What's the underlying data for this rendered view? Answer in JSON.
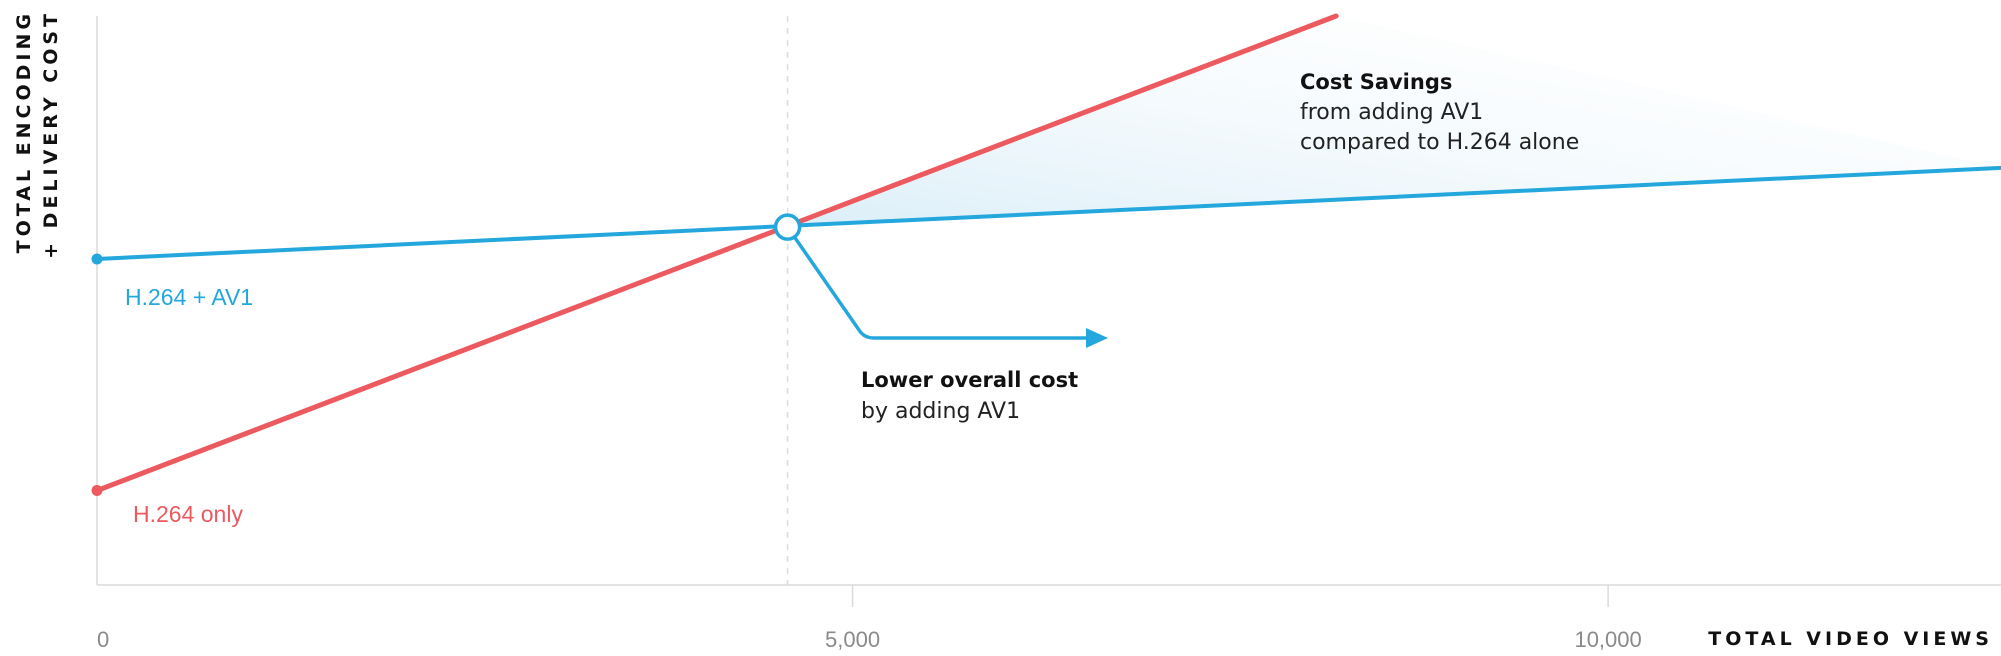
{
  "chart_data": {
    "type": "line",
    "xlabel": "TOTAL VIDEO VIEWS",
    "ylabel": [
      "TOTAL ENCODING",
      "+ DELIVERY COST"
    ],
    "xlim": [
      0,
      12600
    ],
    "ylim": [
      0,
      100
    ],
    "x_ticks": [
      0,
      5000,
      10000
    ],
    "x_tick_labels": [
      "0",
      "5,000",
      "10,000"
    ],
    "y_ticks_shown": false,
    "grid": false,
    "series": [
      {
        "name": "H.264 + AV1",
        "color": "#23a7dc",
        "x": [
          0,
          12600
        ],
        "y": [
          57.3,
          73.3
        ]
      },
      {
        "name": "H.264 only",
        "color": "#ec5a60",
        "x": [
          0,
          8200
        ],
        "y": [
          16.6,
          100
        ]
      }
    ],
    "breakeven": {
      "x": 4570,
      "y": 62.9
    },
    "annotations": {
      "savings": {
        "title": "Cost Savings",
        "lines": [
          "from adding AV1",
          "compared to H.264 alone"
        ]
      },
      "lower_cost": {
        "title": "Lower overall cost",
        "lines": [
          "by adding AV1"
        ]
      }
    }
  }
}
